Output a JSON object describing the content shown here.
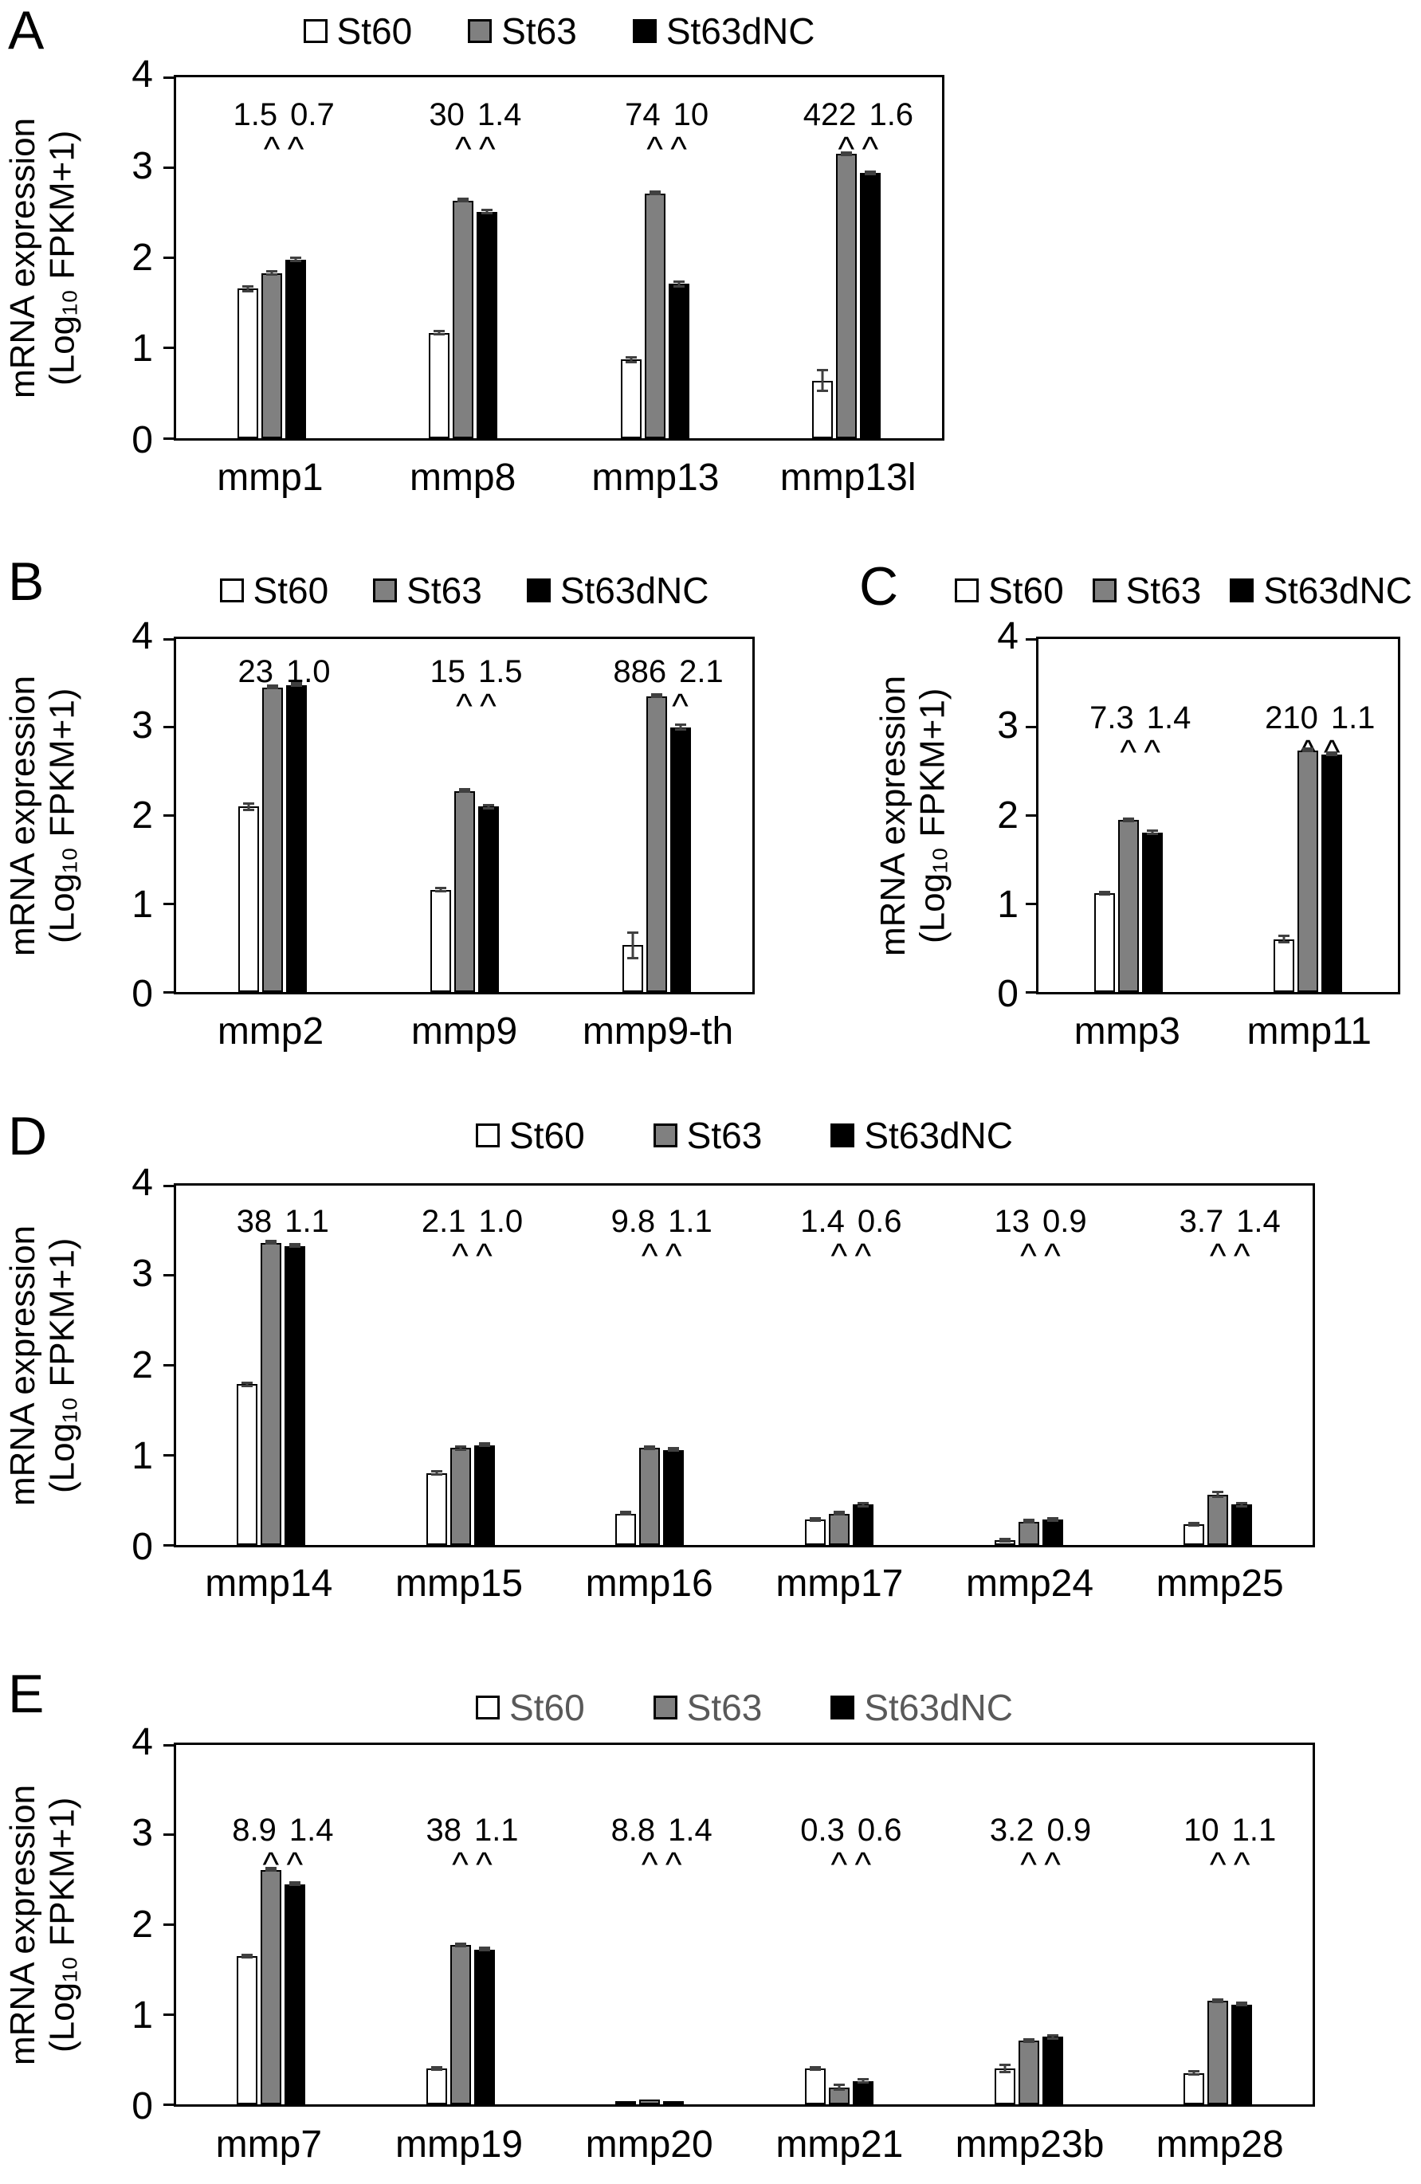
{
  "figure": {
    "background": "#ffffff",
    "ylabel_line1": "mRNA expression",
    "ylabel_line2": "(Log₁₀ FPKM+1)",
    "yticks": [
      "0",
      "1",
      "2",
      "3",
      "4"
    ],
    "ylim": [
      0,
      4
    ],
    "annotation_marker": "^",
    "series_colors": {
      "St60": "#ffffff",
      "St63": "#808080",
      "St63dNC": "#000000"
    },
    "bar_border_color": "#000000",
    "error_bar_color": "#404040"
  },
  "chart_data": [
    {
      "panel": "A",
      "type": "bar",
      "legend": [
        "St60",
        "St63",
        "St63dNC"
      ],
      "legend_text_color": "#000000",
      "categories": [
        "mmp1",
        "mmp8",
        "mmp13",
        "mmp13l"
      ],
      "series": [
        {
          "name": "St60",
          "fill": "#ffffff",
          "values": [
            1.66,
            1.17,
            0.87,
            0.64
          ],
          "errors": [
            0.04,
            0.03,
            0.04,
            0.13
          ]
        },
        {
          "name": "St63",
          "fill": "#808080",
          "values": [
            1.83,
            2.63,
            2.71,
            3.15
          ],
          "errors": [
            0.03,
            0.02,
            0.02,
            0.02
          ]
        },
        {
          "name": "St63dNC",
          "fill": "#000000",
          "values": [
            1.98,
            2.51,
            1.71,
            2.94
          ],
          "errors": [
            0.03,
            0.03,
            0.04,
            0.03
          ]
        }
      ],
      "fold_annotations": [
        [
          "1.5",
          "0.7"
        ],
        [
          "30",
          "1.4"
        ],
        [
          "74",
          "10"
        ],
        [
          "422",
          "1.6"
        ]
      ],
      "ylim": [
        0,
        4
      ]
    },
    {
      "panel": "B",
      "type": "bar",
      "legend": [
        "St60",
        "St63",
        "St63dNC"
      ],
      "legend_text_color": "#000000",
      "categories": [
        "mmp2",
        "mmp9",
        "mmp9-th"
      ],
      "series": [
        {
          "name": "St60",
          "fill": "#ffffff",
          "values": [
            2.1,
            1.16,
            0.53
          ],
          "errors": [
            0.05,
            0.03,
            0.16
          ]
        },
        {
          "name": "St63",
          "fill": "#808080",
          "values": [
            3.45,
            2.28,
            3.35
          ],
          "errors": [
            0.02,
            0.02,
            0.02
          ]
        },
        {
          "name": "St63dNC",
          "fill": "#000000",
          "values": [
            3.48,
            2.1,
            3.0
          ],
          "errors": [
            0.02,
            0.03,
            0.04
          ]
        }
      ],
      "fold_annotations": [
        [
          "23",
          "1.0"
        ],
        [
          "15",
          "1.5"
        ],
        [
          "886",
          "2.1"
        ]
      ],
      "ylim": [
        0,
        4
      ]
    },
    {
      "panel": "C",
      "type": "bar",
      "legend": [
        "St60",
        "St63",
        "St63dNC"
      ],
      "legend_text_color": "#000000",
      "categories": [
        "mmp3",
        "mmp11"
      ],
      "series": [
        {
          "name": "St60",
          "fill": "#ffffff",
          "values": [
            1.12,
            0.6
          ],
          "errors": [
            0.03,
            0.05
          ]
        },
        {
          "name": "St63",
          "fill": "#808080",
          "values": [
            1.95,
            2.74
          ],
          "errors": [
            0.03,
            0.02
          ]
        },
        {
          "name": "St63dNC",
          "fill": "#000000",
          "values": [
            1.81,
            2.69
          ],
          "errors": [
            0.03,
            0.02
          ]
        }
      ],
      "fold_annotations": [
        [
          "7.3",
          "1.4"
        ],
        [
          "210",
          "1.1"
        ]
      ],
      "ylim": [
        0,
        4
      ]
    },
    {
      "panel": "D",
      "type": "bar",
      "legend": [
        "St60",
        "St63",
        "St63dNC"
      ],
      "legend_text_color": "#000000",
      "categories": [
        "mmp14",
        "mmp15",
        "mmp16",
        "mmp17",
        "mmp24",
        "mmp25"
      ],
      "series": [
        {
          "name": "St60",
          "fill": "#ffffff",
          "values": [
            1.79,
            0.8,
            0.35,
            0.28,
            0.05,
            0.23
          ],
          "errors": [
            0.03,
            0.03,
            0.02,
            0.02,
            0.02,
            0.03
          ]
        },
        {
          "name": "St63",
          "fill": "#808080",
          "values": [
            3.36,
            1.08,
            1.08,
            0.35,
            0.26,
            0.56
          ],
          "errors": [
            0.02,
            0.03,
            0.02,
            0.02,
            0.02,
            0.04
          ]
        },
        {
          "name": "St63dNC",
          "fill": "#000000",
          "values": [
            3.33,
            1.11,
            1.06,
            0.45,
            0.28,
            0.45
          ],
          "errors": [
            0.02,
            0.02,
            0.02,
            0.03,
            0.02,
            0.03
          ]
        }
      ],
      "fold_annotations": [
        [
          "38",
          "1.1"
        ],
        [
          "2.1",
          "1.0"
        ],
        [
          "9.8",
          "1.1"
        ],
        [
          "1.4",
          "0.6"
        ],
        [
          "13",
          "0.9"
        ],
        [
          "3.7",
          "1.4"
        ]
      ],
      "ylim": [
        0,
        4
      ]
    },
    {
      "panel": "E",
      "type": "bar",
      "legend": [
        "St60",
        "St63",
        "St63dNC"
      ],
      "legend_text_color": "#595959",
      "categories": [
        "mmp7",
        "mmp19",
        "mmp20",
        "mmp21",
        "mmp23b",
        "mmp28"
      ],
      "series": [
        {
          "name": "St60",
          "fill": "#ffffff",
          "values": [
            1.65,
            0.4,
            0.03,
            0.4,
            0.4,
            0.35
          ],
          "errors": [
            0.03,
            0.03,
            0.01,
            0.03,
            0.05,
            0.03
          ]
        },
        {
          "name": "St63",
          "fill": "#808080",
          "values": [
            2.61,
            1.77,
            0.05,
            0.19,
            0.71,
            1.15
          ],
          "errors": [
            0.02,
            0.02,
            0.01,
            0.04,
            0.03,
            0.02
          ]
        },
        {
          "name": "St63dNC",
          "fill": "#000000",
          "values": [
            2.45,
            1.72,
            0.04,
            0.26,
            0.75,
            1.11
          ],
          "errors": [
            0.02,
            0.02,
            0.01,
            0.03,
            0.03,
            0.02
          ]
        }
      ],
      "fold_annotations": [
        [
          "8.9",
          "1.4"
        ],
        [
          "38",
          "1.1"
        ],
        [
          "8.8",
          "1.4"
        ],
        [
          "0.3",
          "0.6"
        ],
        [
          "3.2",
          "0.9"
        ],
        [
          "10",
          "1.1"
        ]
      ],
      "ylim": [
        0,
        4
      ]
    }
  ]
}
